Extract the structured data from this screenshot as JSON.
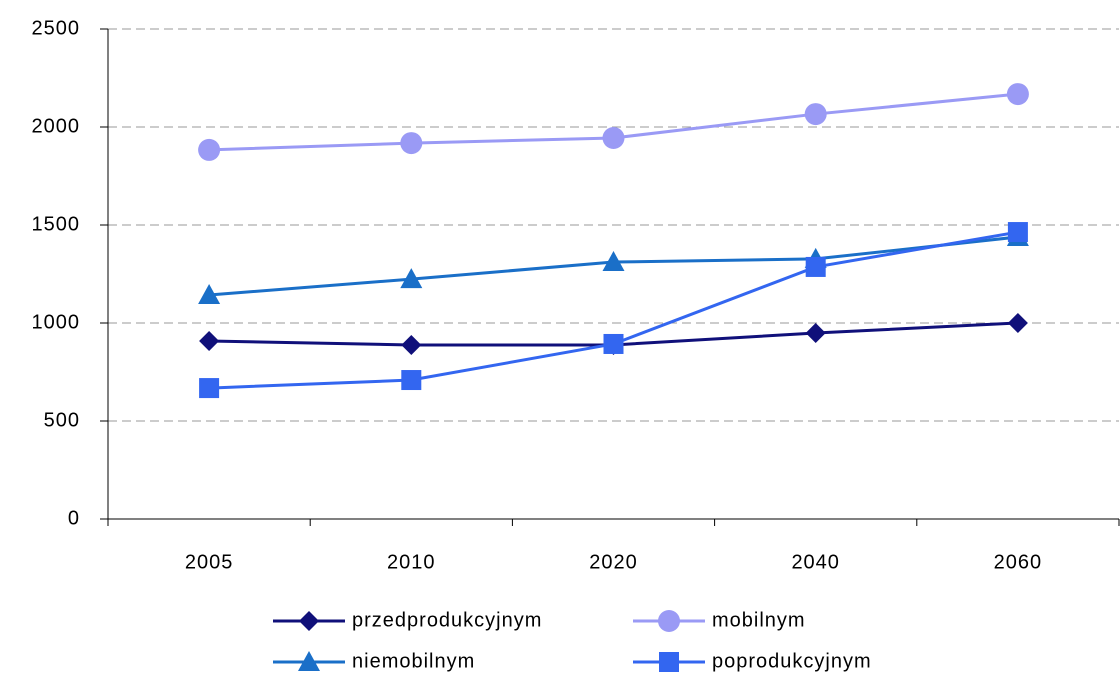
{
  "chart_data": {
    "type": "line",
    "categories": [
      "2005",
      "2010",
      "2020",
      "2040",
      "2060"
    ],
    "series": [
      {
        "name": "przedprodukcyjnym",
        "color": "#10107a",
        "marker": "diamond",
        "values": [
          908,
          888,
          888,
          949,
          1000
        ]
      },
      {
        "name": "mobilnym",
        "color": "#9a9af5",
        "marker": "circle",
        "values": [
          1883,
          1918,
          1944,
          2066,
          2168
        ]
      },
      {
        "name": "niemobilnym",
        "color": "#1a6fc8",
        "marker": "triangle",
        "values": [
          1143,
          1224,
          1311,
          1327,
          1439
        ]
      },
      {
        "name": "poprodukcyjnym",
        "color": "#3366f0",
        "marker": "square",
        "values": [
          668,
          709,
          893,
          1286,
          1464
        ]
      }
    ],
    "ylim": [
      0,
      2500
    ],
    "yticks": [
      0,
      500,
      1000,
      1500,
      2000,
      2500
    ],
    "grid": true,
    "legend": "bottom"
  }
}
